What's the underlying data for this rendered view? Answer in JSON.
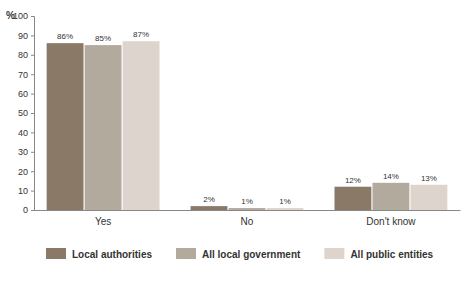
{
  "chart_data": {
    "type": "bar",
    "y_label": "%",
    "categories": [
      "Yes",
      "No",
      "Don't know"
    ],
    "series": [
      {
        "name": "Local authorities",
        "color": "#8b7968",
        "values": [
          86,
          2,
          12
        ],
        "value_labels": [
          "86%",
          "2%",
          "12%"
        ]
      },
      {
        "name": "All local government",
        "color": "#b3aa9e",
        "values": [
          85,
          1,
          14
        ],
        "value_labels": [
          "85%",
          "1%",
          "14%"
        ]
      },
      {
        "name": "All public entities",
        "color": "#ddd5cd",
        "values": [
          87,
          1,
          13
        ],
        "value_labels": [
          "87%",
          "1%",
          "13%"
        ]
      }
    ],
    "ylim": [
      0,
      100
    ],
    "yticks": [
      0,
      10,
      20,
      30,
      40,
      50,
      60,
      70,
      80,
      90,
      100
    ],
    "grid": false,
    "data_labels": true,
    "legend": "bottom"
  }
}
